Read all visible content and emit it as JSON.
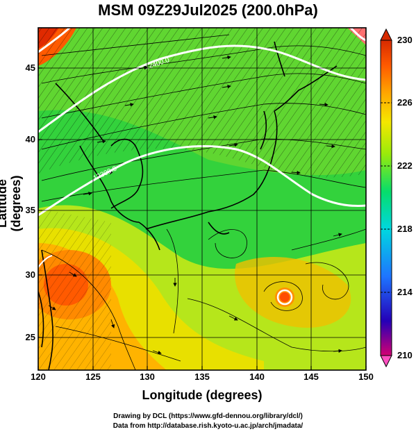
{
  "title": "MSM 09Z29Jul2025 (200.0hPa)",
  "axes": {
    "xlabel": "Longitude (degrees)",
    "ylabel": "Latitude  (degrees)",
    "xticks": [
      "120",
      "125",
      "130",
      "135",
      "140",
      "145",
      "150"
    ],
    "yticks": [
      "45",
      "40",
      "35",
      "30",
      "25"
    ]
  },
  "colorbar": {
    "ticks": [
      "230",
      "226",
      "222",
      "218",
      "214",
      "210"
    ],
    "colors": [
      "#d30073",
      "#2400b7",
      "#1e74ff",
      "#00d7e0",
      "#06dd6b",
      "#9aea0a",
      "#f4e800",
      "#ffa800",
      "#ff5a00",
      "#d72a00"
    ]
  },
  "map": {
    "contour_labels": [
      "12400.0",
      "12300.0"
    ],
    "colors": {
      "green": "#33d23c",
      "yellow_green": "#b6e61b",
      "orange": "#ff9a00",
      "red_orange": "#ff4d00",
      "contour": "#ffffff",
      "coast": "#000000"
    }
  },
  "credits": [
    "Drawing by DCL (https://www.gfd-dennou.org/library/dcl/)",
    "Data from http://database.rish.kyoto-u.ac.jp/arch/jmadata/"
  ]
}
